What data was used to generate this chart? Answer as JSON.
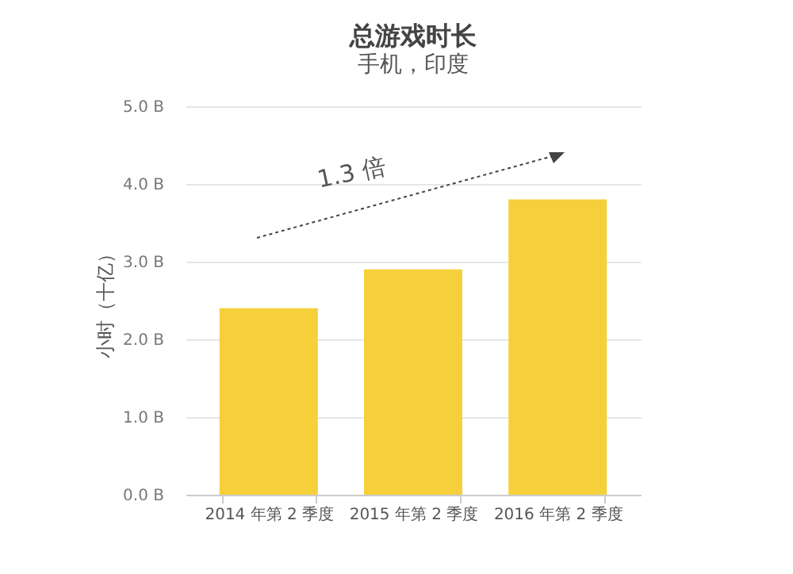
{
  "chart_data": {
    "type": "bar",
    "title": "总游戏时长",
    "subtitle": "手机，印度",
    "ylabel": "小时（十亿）",
    "categories": [
      "2014 年第 2 季度",
      "2015 年第 2 季度",
      "2016 年第 2 季度"
    ],
    "values": [
      2.4,
      2.9,
      3.8
    ],
    "color": "#f5d03b",
    "ylim": [
      0,
      5
    ],
    "yticks": [
      {
        "value": 0,
        "label": "0.0 B"
      },
      {
        "value": 1,
        "label": "1.0 B"
      },
      {
        "value": 2,
        "label": "2.0 B"
      },
      {
        "value": 3,
        "label": "3.0 B"
      },
      {
        "value": 4,
        "label": "4.0 B"
      },
      {
        "value": 5,
        "label": "5.0 B"
      }
    ],
    "grid": "y",
    "annotations": [
      "1.3 倍"
    ]
  }
}
